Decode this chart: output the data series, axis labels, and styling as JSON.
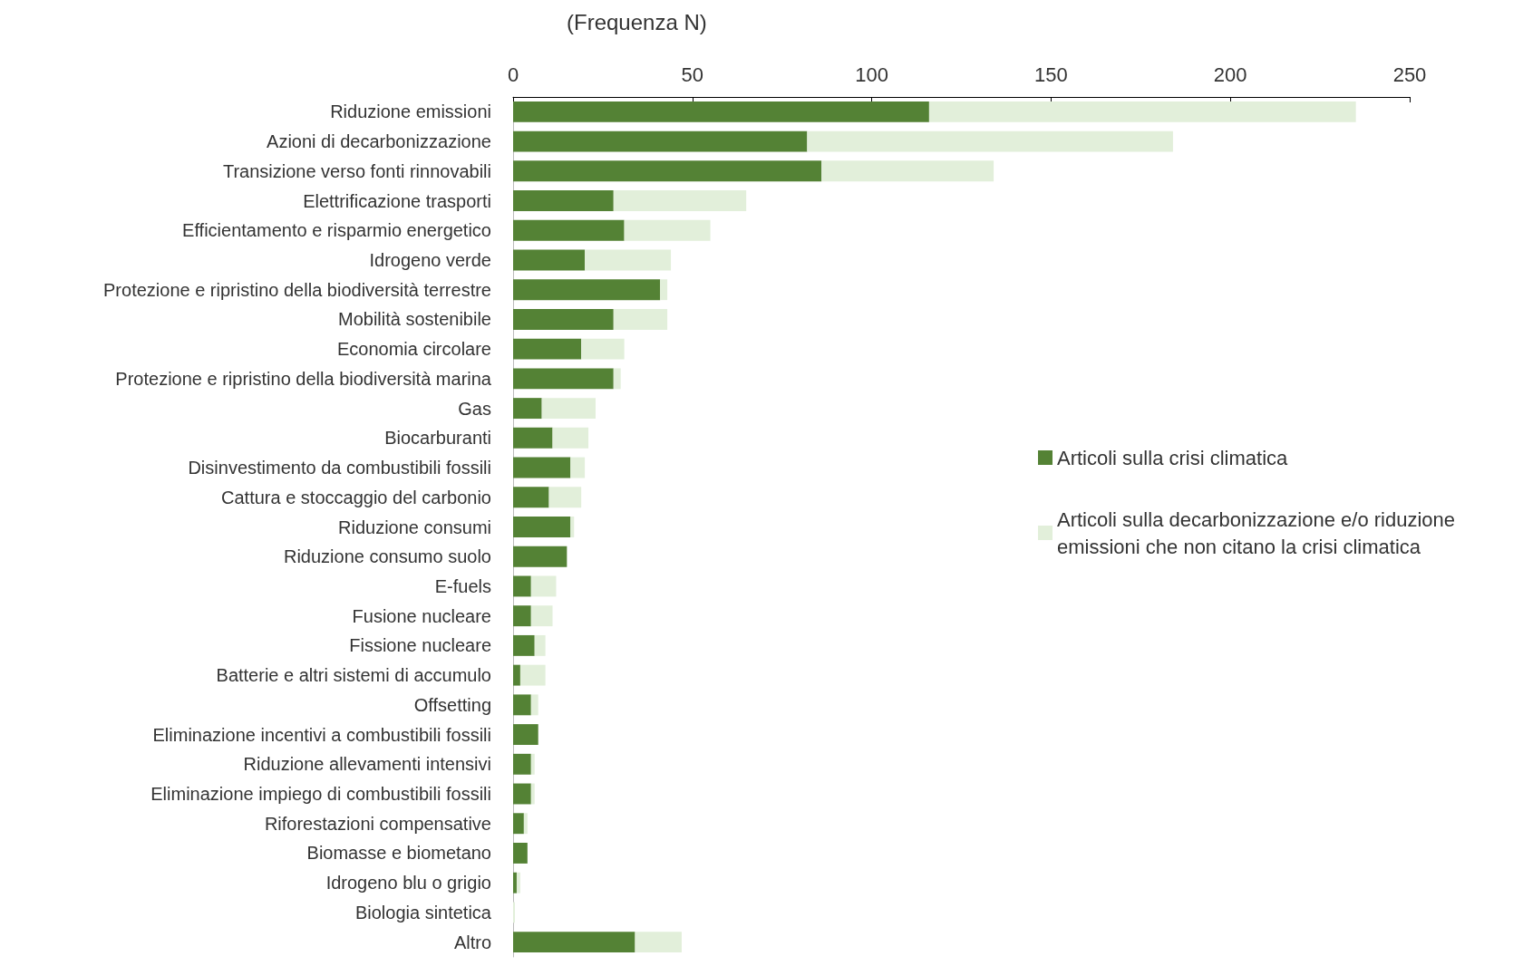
{
  "chart_data": {
    "type": "bar",
    "orientation": "horizontal",
    "stacked": true,
    "xlabel": "(Frequenza N)",
    "categories": [
      "Riduzione emissioni",
      "Azioni di decarbonizzazione",
      "Transizione verso fonti rinnovabili",
      "Elettrificazione trasporti",
      "Efficientamento e risparmio energetico",
      "Idrogeno verde",
      "Protezione e ripristino della biodiversità terrestre",
      "Mobilità sostenibile",
      "Economia circolare",
      "Protezione e ripristino della biodiversità marina",
      "Gas",
      "Biocarburanti",
      "Disinvestimento da combustibili fossili",
      "Cattura e stoccaggio del carbonio",
      "Riduzione consumi",
      "Riduzione consumo suolo",
      "E-fuels",
      "Fusione nucleare",
      "Fissione nucleare",
      "Batterie e altri sistemi di accumulo",
      "Offsetting",
      "Eliminazione incentivi a combustibili fossili",
      "Riduzione allevamenti intensivi",
      "Eliminazione impiego di combustibili fossili",
      "Riforestazioni compensative",
      "Biomasse e biometano",
      "Idrogeno blu o grigio",
      "Biologia sintetica",
      "Altro"
    ],
    "series": [
      {
        "name": "Articoli sulla crisi climatica",
        "color": "#548235",
        "values": [
          116,
          82,
          86,
          28,
          31,
          20,
          41,
          28,
          19,
          28,
          8,
          11,
          16,
          10,
          16,
          15,
          5,
          5,
          6,
          2,
          5,
          7,
          5,
          5,
          3,
          4,
          1,
          0,
          34
        ]
      },
      {
        "name": "Articoli sulla decarbonizzazione e/o riduzione emissioni che non citano la crisi climatica",
        "color": "#e2efda",
        "values": [
          119,
          102,
          48,
          37,
          24,
          24,
          2,
          15,
          12,
          2,
          15,
          10,
          4,
          9,
          1,
          0,
          7,
          6,
          3,
          7,
          2,
          0,
          1,
          1,
          1,
          0,
          1,
          0.5,
          13
        ]
      }
    ],
    "xlim": [
      0,
      250
    ],
    "xticks": [
      0,
      50,
      100,
      150,
      200,
      250
    ],
    "grid": false,
    "legend": "right"
  }
}
